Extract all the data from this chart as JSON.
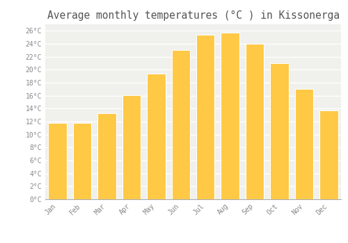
{
  "title": "Average monthly temperatures (°C ) in Kissonerga",
  "months": [
    "Jan",
    "Feb",
    "Mar",
    "Apr",
    "May",
    "Jun",
    "Jul",
    "Aug",
    "Sep",
    "Oct",
    "Nov",
    "Dec"
  ],
  "values": [
    11.8,
    11.8,
    13.3,
    16.1,
    19.4,
    23.0,
    25.4,
    25.7,
    24.0,
    21.0,
    17.0,
    13.7
  ],
  "bar_color_top": "#FFC845",
  "bar_color_bottom": "#FFB020",
  "bar_edge_color": "#FFFFFF",
  "background_color": "#FFFFFF",
  "plot_bg_color": "#F0F0EC",
  "grid_color": "#FFFFFF",
  "ylim": [
    0,
    27
  ],
  "yticks": [
    0,
    2,
    4,
    6,
    8,
    10,
    12,
    14,
    16,
    18,
    20,
    22,
    24,
    26
  ],
  "tick_label_color": "#888888",
  "title_color": "#555555",
  "title_fontsize": 10.5,
  "bar_width": 0.75
}
